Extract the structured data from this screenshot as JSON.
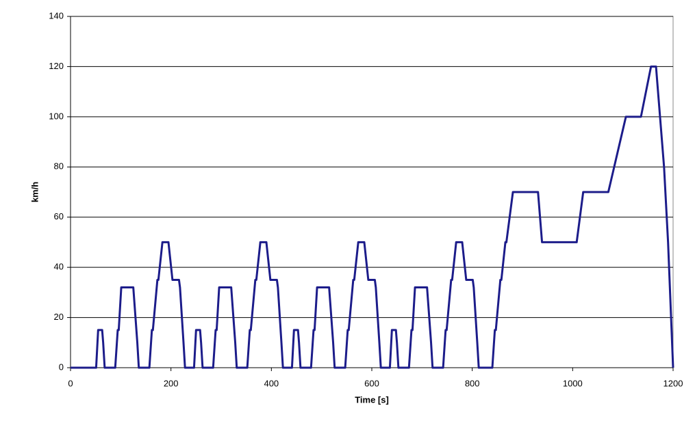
{
  "chart_data": {
    "type": "line",
    "x_label": "Time [s]",
    "y_label": "km/h",
    "xlim": [
      0,
      1200
    ],
    "xticks": [
      0,
      200,
      400,
      600,
      800,
      1000,
      1200
    ],
    "ylim": [
      0,
      140
    ],
    "yticks": [
      0,
      20,
      40,
      60,
      80,
      100,
      120,
      140
    ],
    "grid": true,
    "x": [
      0,
      51,
      55,
      63,
      65,
      68,
      89,
      94,
      96,
      101,
      125,
      133,
      136,
      157,
      162,
      164,
      173,
      175,
      183,
      195,
      203,
      216,
      218,
      225,
      228,
      246,
      250,
      258,
      260,
      263,
      284,
      289,
      291,
      296,
      320,
      328,
      331,
      352,
      357,
      359,
      368,
      370,
      378,
      390,
      398,
      411,
      413,
      420,
      423,
      441,
      445,
      453,
      455,
      458,
      479,
      484,
      486,
      491,
      515,
      523,
      526,
      547,
      552,
      554,
      563,
      565,
      573,
      585,
      593,
      606,
      608,
      615,
      618,
      636,
      640,
      648,
      650,
      653,
      674,
      679,
      681,
      686,
      710,
      718,
      721,
      742,
      747,
      749,
      758,
      760,
      768,
      780,
      788,
      801,
      803,
      810,
      813,
      840,
      845,
      847,
      856,
      858,
      866,
      868,
      881,
      931,
      939,
      1008,
      1021,
      1071,
      1106,
      1136,
      1156,
      1166,
      1182,
      1190,
      1200
    ],
    "series": [
      {
        "color": "#1c1c8a",
        "values": [
          0,
          0,
          15,
          15,
          10,
          0,
          0,
          15,
          15,
          32,
          32,
          10,
          0,
          0,
          15,
          15,
          35,
          35,
          50,
          50,
          35,
          35,
          32,
          10,
          0,
          0,
          15,
          15,
          10,
          0,
          0,
          15,
          15,
          32,
          32,
          10,
          0,
          0,
          15,
          15,
          35,
          35,
          50,
          50,
          35,
          35,
          32,
          10,
          0,
          0,
          15,
          15,
          10,
          0,
          0,
          15,
          15,
          32,
          32,
          10,
          0,
          0,
          15,
          15,
          35,
          35,
          50,
          50,
          35,
          35,
          32,
          10,
          0,
          0,
          15,
          15,
          10,
          0,
          0,
          15,
          15,
          32,
          32,
          10,
          0,
          0,
          15,
          15,
          35,
          35,
          50,
          50,
          35,
          35,
          32,
          10,
          0,
          0,
          15,
          15,
          35,
          35,
          50,
          50,
          70,
          70,
          50,
          50,
          70,
          70,
          100,
          100,
          120,
          120,
          80,
          50,
          0
        ]
      }
    ]
  }
}
